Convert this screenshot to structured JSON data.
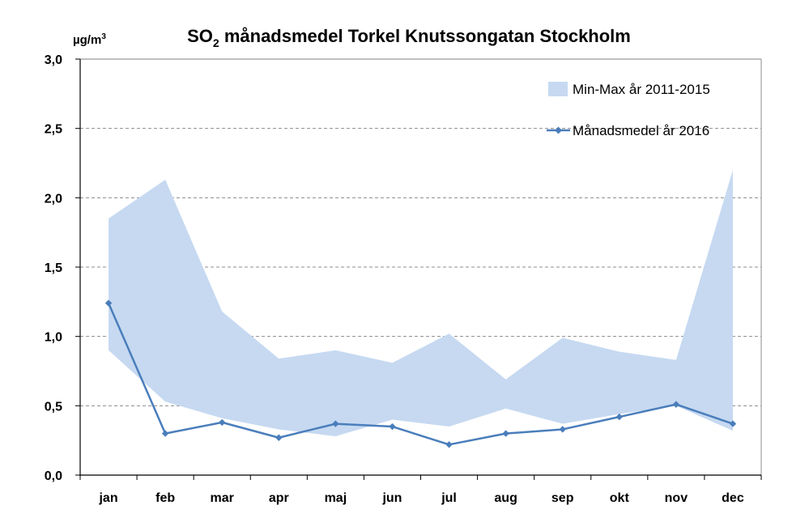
{
  "chart_data": {
    "type": "line",
    "title": "SO2 månadsmedel Torkel Knutssongatan Stockholm",
    "title_parts": {
      "before_sub": "SO",
      "subscript": "2",
      "after_sub": " månadsmedel Torkel Knutssongatan Stockholm"
    },
    "unit_label": {
      "base": "µg/m",
      "superscript": "3"
    },
    "xlabel": "",
    "ylabel": "",
    "ylim": [
      0.0,
      3.0
    ],
    "ytick_values": [
      0.0,
      0.5,
      1.0,
      1.5,
      2.0,
      2.5,
      3.0
    ],
    "ytick_labels": [
      "0,0",
      "0,5",
      "1,0",
      "1,5",
      "2,0",
      "2,5",
      "3,0"
    ],
    "categories": [
      "jan",
      "feb",
      "mar",
      "apr",
      "maj",
      "jun",
      "jul",
      "aug",
      "sep",
      "okt",
      "nov",
      "dec"
    ],
    "grid": "horizontal-dashed",
    "legend_placement": "top-right",
    "series": [
      {
        "name": "Min-Max år 2011-2015",
        "kind": "band",
        "color": "#c6d9f1",
        "min": [
          0.9,
          0.53,
          0.41,
          0.33,
          0.28,
          0.4,
          0.35,
          0.48,
          0.37,
          0.44,
          0.5,
          0.32
        ],
        "max": [
          1.85,
          2.13,
          1.18,
          0.84,
          0.9,
          0.81,
          1.02,
          0.69,
          0.99,
          0.89,
          0.83,
          2.2
        ]
      },
      {
        "name": "Månadsmedel år 2016",
        "kind": "line",
        "color": "#4a7ebb",
        "marker": "diamond",
        "values": [
          1.24,
          0.3,
          0.38,
          0.27,
          0.37,
          0.35,
          0.22,
          0.3,
          0.33,
          0.42,
          0.51,
          0.37
        ]
      }
    ]
  }
}
